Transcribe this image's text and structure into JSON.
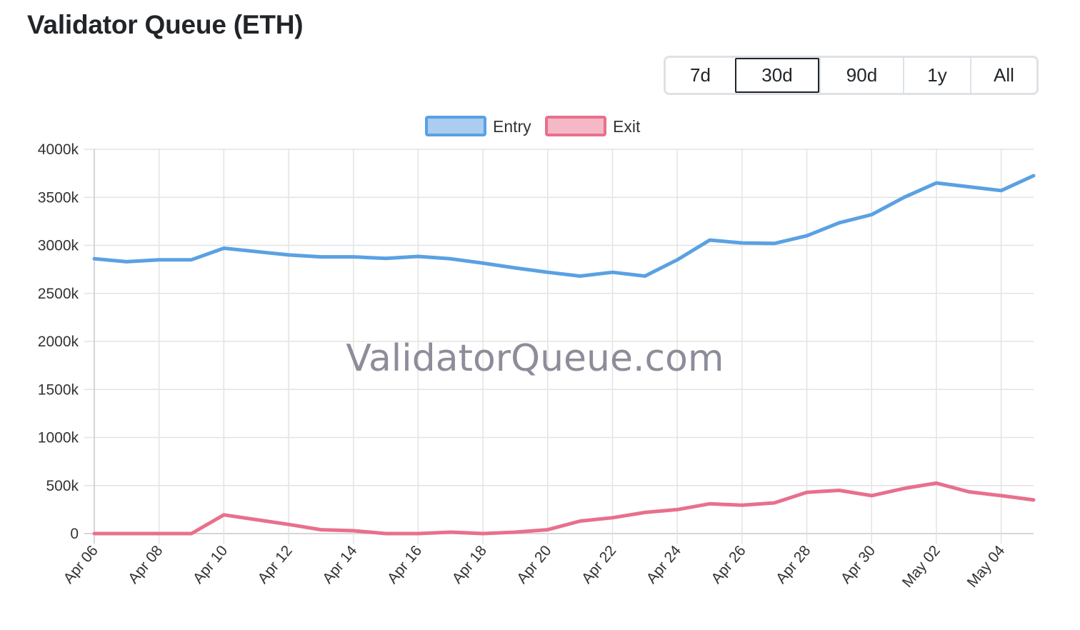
{
  "header": {
    "title": "Validator Queue (ETH)"
  },
  "range_selector": {
    "buttons": [
      {
        "label": "7d",
        "active": false
      },
      {
        "label": "30d",
        "active": true
      },
      {
        "label": "90d",
        "active": false
      },
      {
        "label": "1y",
        "active": false
      },
      {
        "label": "All",
        "active": false
      }
    ]
  },
  "watermark": "ValidatorQueue.com",
  "colors": {
    "entry_line": "#5aa1e3",
    "entry_fill": "#aacdf0",
    "exit_line": "#e8708c",
    "exit_fill": "#f5b8c7",
    "grid": "#e3e3e3",
    "axis": "#c8c8c8"
  },
  "chart_data": {
    "type": "line",
    "title": "",
    "xlabel": "",
    "ylabel": "",
    "legend_position": "top-center",
    "grid": true,
    "ylim": [
      0,
      4000
    ],
    "y_unit_suffix": "k",
    "y_ticks": [
      "0",
      "500k",
      "1000k",
      "1500k",
      "2000k",
      "2500k",
      "3000k",
      "3500k",
      "4000k"
    ],
    "x_tick_labels": [
      "Apr 06",
      "Apr 08",
      "Apr 10",
      "Apr 12",
      "Apr 14",
      "Apr 16",
      "Apr 18",
      "Apr 20",
      "Apr 22",
      "Apr 24",
      "Apr 26",
      "Apr 28",
      "Apr 30",
      "May 02",
      "May 04"
    ],
    "x": [
      "Apr 06",
      "Apr 07",
      "Apr 08",
      "Apr 09",
      "Apr 10",
      "Apr 11",
      "Apr 12",
      "Apr 13",
      "Apr 14",
      "Apr 15",
      "Apr 16",
      "Apr 17",
      "Apr 18",
      "Apr 19",
      "Apr 20",
      "Apr 21",
      "Apr 22",
      "Apr 23",
      "Apr 24",
      "Apr 25",
      "Apr 26",
      "Apr 27",
      "Apr 28",
      "Apr 29",
      "Apr 30",
      "May 01",
      "May 02",
      "May 03",
      "May 04",
      "May 05"
    ],
    "series": [
      {
        "name": "Entry",
        "values": [
          2860,
          2830,
          2850,
          2850,
          2970,
          2935,
          2900,
          2880,
          2880,
          2865,
          2885,
          2860,
          2815,
          2765,
          2720,
          2680,
          2720,
          2680,
          2850,
          3055,
          3025,
          3020,
          3100,
          3235,
          3320,
          3500,
          3650,
          3610,
          3570,
          3725
        ]
      },
      {
        "name": "Exit",
        "values": [
          0,
          0,
          0,
          0,
          195,
          145,
          95,
          40,
          30,
          0,
          0,
          15,
          0,
          15,
          40,
          130,
          165,
          220,
          250,
          310,
          295,
          320,
          430,
          450,
          395,
          470,
          525,
          435,
          395,
          350
        ]
      }
    ]
  }
}
